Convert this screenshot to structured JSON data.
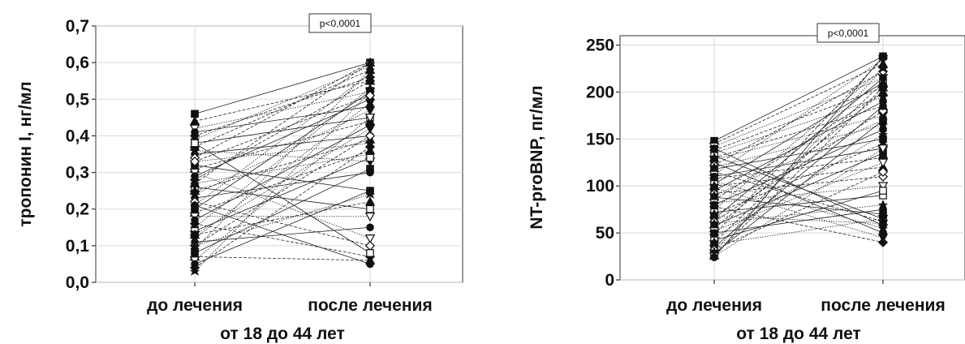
{
  "chart_data": [
    {
      "type": "line",
      "ylabel": "тропонин I, нг/мл",
      "xlabel": "от 18 до 44 лет",
      "categories": [
        "до лечения",
        "после лечения"
      ],
      "ylim": [
        0,
        0.7
      ],
      "yticks": [
        "0,0",
        "0,1",
        "0,2",
        "0,3",
        "0,4",
        "0,5",
        "0,6",
        "0,7"
      ],
      "ytick_values": [
        0,
        0.1,
        0.2,
        0.3,
        0.4,
        0.5,
        0.6,
        0.7
      ],
      "annotation": "p<0,0001",
      "grid": true,
      "pairs": [
        [
          0.46,
          0.6
        ],
        [
          0.44,
          0.55
        ],
        [
          0.42,
          0.52
        ],
        [
          0.41,
          0.48
        ],
        [
          0.4,
          0.56
        ],
        [
          0.39,
          0.59
        ],
        [
          0.38,
          0.45
        ],
        [
          0.37,
          0.58
        ],
        [
          0.36,
          0.33
        ],
        [
          0.35,
          0.4
        ],
        [
          0.34,
          0.6
        ],
        [
          0.33,
          0.38
        ],
        [
          0.32,
          0.25
        ],
        [
          0.31,
          0.44
        ],
        [
          0.3,
          0.12
        ],
        [
          0.29,
          0.5
        ],
        [
          0.28,
          0.55
        ],
        [
          0.27,
          0.35
        ],
        [
          0.26,
          0.2
        ],
        [
          0.25,
          0.39
        ],
        [
          0.24,
          0.47
        ],
        [
          0.23,
          0.3
        ],
        [
          0.22,
          0.1
        ],
        [
          0.21,
          0.57
        ],
        [
          0.2,
          0.52
        ],
        [
          0.19,
          0.36
        ],
        [
          0.18,
          0.18
        ],
        [
          0.17,
          0.43
        ],
        [
          0.16,
          0.07
        ],
        [
          0.15,
          0.53
        ],
        [
          0.14,
          0.34
        ],
        [
          0.13,
          0.22
        ],
        [
          0.12,
          0.49
        ],
        [
          0.11,
          0.15
        ],
        [
          0.1,
          0.4
        ],
        [
          0.09,
          0.58
        ],
        [
          0.08,
          0.31
        ],
        [
          0.07,
          0.06
        ],
        [
          0.06,
          0.45
        ],
        [
          0.05,
          0.25
        ],
        [
          0.04,
          0.37
        ],
        [
          0.03,
          0.52
        ],
        [
          0.38,
          0.08
        ],
        [
          0.27,
          0.6
        ],
        [
          0.13,
          0.42
        ],
        [
          0.21,
          0.05
        ],
        [
          0.33,
          0.51
        ],
        [
          0.1,
          0.24
        ]
      ]
    },
    {
      "type": "line",
      "ylabel": "NT-proBNP, пг/мл",
      "xlabel": "от 18 до 44 лет",
      "categories": [
        "до лечения",
        "после лечения"
      ],
      "ylim": [
        0,
        260
      ],
      "yticks": [
        "0",
        "50",
        "100",
        "150",
        "200",
        "250"
      ],
      "ytick_values": [
        0,
        50,
        100,
        150,
        200,
        250
      ],
      "annotation": "p<0,0001",
      "grid": true,
      "pairs": [
        [
          148,
          238
        ],
        [
          145,
          230
        ],
        [
          142,
          215
        ],
        [
          140,
          58
        ],
        [
          138,
          205
        ],
        [
          135,
          195
        ],
        [
          132,
          65
        ],
        [
          130,
          185
        ],
        [
          128,
          175
        ],
        [
          125,
          50
        ],
        [
          122,
          222
        ],
        [
          120,
          165
        ],
        [
          118,
          150
        ],
        [
          115,
          62
        ],
        [
          112,
          235
        ],
        [
          110,
          140
        ],
        [
          108,
          130
        ],
        [
          105,
          55
        ],
        [
          102,
          210
        ],
        [
          100,
          120
        ],
        [
          98,
          45
        ],
        [
          95,
          190
        ],
        [
          92,
          110
        ],
        [
          90,
          170
        ],
        [
          88,
          70
        ],
        [
          85,
          200
        ],
        [
          82,
          100
        ],
        [
          80,
          160
        ],
        [
          78,
          40
        ],
        [
          75,
          225
        ],
        [
          72,
          90
        ],
        [
          70,
          145
        ],
        [
          68,
          60
        ],
        [
          65,
          215
        ],
        [
          62,
          180
        ],
        [
          60,
          80
        ],
        [
          58,
          135
        ],
        [
          55,
          200
        ],
        [
          52,
          125
        ],
        [
          50,
          75
        ],
        [
          48,
          236
        ],
        [
          45,
          155
        ],
        [
          42,
          95
        ],
        [
          40,
          210
        ],
        [
          38,
          65
        ],
        [
          35,
          185
        ],
        [
          32,
          115
        ],
        [
          30,
          225
        ],
        [
          28,
          170
        ],
        [
          26,
          205
        ],
        [
          25,
          140
        ],
        [
          24,
          238
        ]
      ]
    }
  ]
}
